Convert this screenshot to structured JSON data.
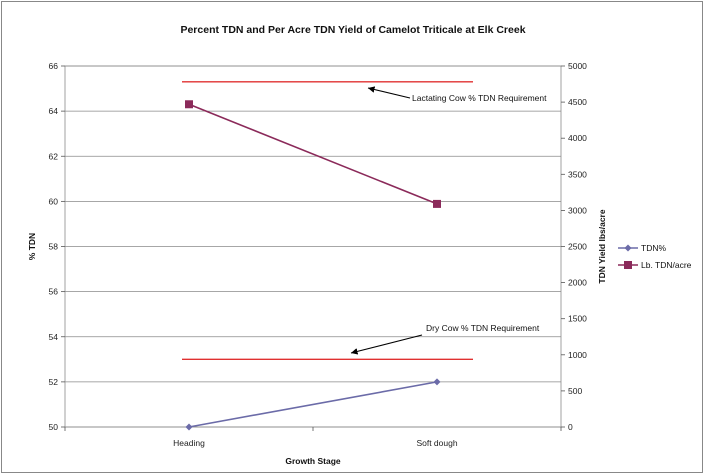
{
  "chart_data": {
    "type": "line",
    "title": "Percent TDN and Per Acre TDN Yield of Camelot Triticale at Elk Creek",
    "xlabel": "Growth Stage",
    "ylabel_left": "% TDN",
    "ylabel_right": "TDN Yield lbs/acre",
    "categories": [
      "Heading",
      "Soft dough"
    ],
    "ylim_left": [
      50,
      66
    ],
    "yticks_left": [
      "50",
      "52",
      "54",
      "56",
      "58",
      "60",
      "62",
      "64",
      "66"
    ],
    "ylim_right": [
      0,
      5000
    ],
    "yticks_right": [
      "0",
      "500",
      "1000",
      "1500",
      "2000",
      "2500",
      "3000",
      "3500",
      "4000",
      "4500",
      "5000"
    ],
    "grid": true,
    "legend_position": "right",
    "series": [
      {
        "name": "TDN%",
        "axis": "left",
        "values": [
          50.0,
          52.0
        ],
        "color": "#6B6BA8",
        "marker": "diamond"
      },
      {
        "name": "Lb. TDN/acre",
        "axis": "right",
        "values": [
          4470,
          3090
        ],
        "color": "#8B2A5A",
        "marker": "square"
      }
    ],
    "reference_lines": [
      {
        "label": "Lactating Cow % TDN Requirement",
        "axis": "left",
        "value": 65.3,
        "color": "#E03030"
      },
      {
        "label": "Dry Cow % TDN Requirement",
        "axis": "left",
        "value": 53.0,
        "color": "#E03030"
      }
    ]
  }
}
